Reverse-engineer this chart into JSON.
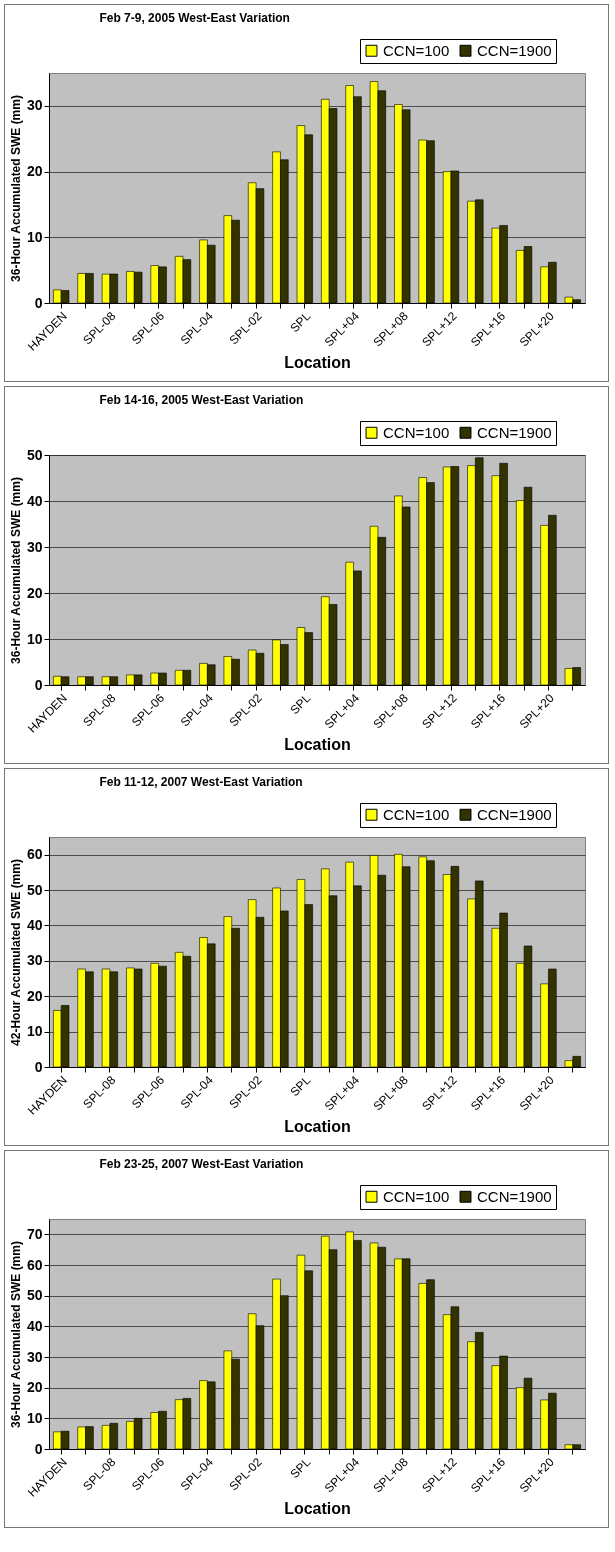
{
  "chart_data": [
    {
      "type": "bar",
      "title": "Feb 7-9, 2005 West-East Variation",
      "xlabel": "Location",
      "ylabel": "36-Hour Accumulated SWE (mm)",
      "categories": [
        "HAYDEN",
        null,
        "SPL-08",
        null,
        "SPL-06",
        null,
        "SPL-04",
        null,
        "SPL-02",
        null,
        "SPL",
        null,
        "SPL+04",
        null,
        "SPL+08",
        null,
        "SPL+12",
        null,
        "SPL+16",
        null,
        "SPL+20",
        null
      ],
      "ylim": [
        0,
        35
      ],
      "yticks": [
        0,
        10,
        20,
        30
      ],
      "grid": "y",
      "legend": "top right",
      "series": [
        {
          "name": "CCN=100",
          "color": "#ffff00",
          "values": [
            2.0,
            4.5,
            4.4,
            4.8,
            5.7,
            7.1,
            9.6,
            13.3,
            18.3,
            23.0,
            27.0,
            31.0,
            33.1,
            33.7,
            30.2,
            24.8,
            20.0,
            15.5,
            11.4,
            8.0,
            5.5,
            0.9
          ]
        },
        {
          "name": "CCN=1900",
          "color": "#333300",
          "values": [
            1.9,
            4.5,
            4.4,
            4.7,
            5.5,
            6.6,
            8.8,
            12.6,
            17.4,
            21.8,
            25.6,
            29.6,
            31.4,
            32.3,
            29.4,
            24.7,
            20.1,
            15.7,
            11.8,
            8.6,
            6.2,
            0.5
          ]
        }
      ]
    },
    {
      "type": "bar",
      "title": "Feb 14-16, 2005 West-East Variation",
      "xlabel": "Location",
      "ylabel": "36-Hour Accumulated SWE (mm)",
      "categories": [
        "HAYDEN",
        null,
        "SPL-08",
        null,
        "SPL-06",
        null,
        "SPL-04",
        null,
        "SPL-02",
        null,
        "SPL",
        null,
        "SPL+04",
        null,
        "SPL+08",
        null,
        "SPL+12",
        null,
        "SPL+16",
        null,
        "SPL+20",
        null
      ],
      "ylim": [
        0,
        50
      ],
      "yticks": [
        0,
        10,
        20,
        30,
        40,
        50
      ],
      "grid": "y",
      "legend": "top right",
      "series": [
        {
          "name": "CCN=100",
          "color": "#ffff00",
          "values": [
            1.9,
            1.8,
            1.8,
            2.2,
            2.6,
            3.2,
            4.7,
            6.2,
            7.6,
            9.8,
            12.5,
            19.2,
            26.7,
            34.5,
            41.1,
            45.1,
            47.4,
            47.7,
            45.5,
            40.1,
            34.7,
            3.6
          ]
        },
        {
          "name": "CCN=1900",
          "color": "#333300",
          "values": [
            1.8,
            1.8,
            1.8,
            2.2,
            2.6,
            3.2,
            4.4,
            5.6,
            6.9,
            8.8,
            11.4,
            17.5,
            24.8,
            32.1,
            38.7,
            44.0,
            47.5,
            49.4,
            48.2,
            43.0,
            36.9,
            3.8
          ]
        }
      ]
    },
    {
      "type": "bar",
      "title": "Feb 11-12, 2007 West-East Variation",
      "xlabel": "Location",
      "ylabel": "42-Hour Accumulated SWE (mm)",
      "categories": [
        "HAYDEN",
        null,
        "SPL-08",
        null,
        "SPL-06",
        null,
        "SPL-04",
        null,
        "SPL-02",
        null,
        "SPL",
        null,
        "SPL+04",
        null,
        "SPL+08",
        null,
        "SPL+12",
        null,
        "SPL+16",
        null,
        "SPL+20",
        null
      ],
      "ylim": [
        0,
        65
      ],
      "yticks": [
        0,
        10,
        20,
        30,
        40,
        50,
        60
      ],
      "grid": "y",
      "legend": "top right",
      "series": [
        {
          "name": "CCN=100",
          "color": "#ffff00",
          "values": [
            16.0,
            27.7,
            27.7,
            28.0,
            29.3,
            32.4,
            36.6,
            42.5,
            47.3,
            50.6,
            53.0,
            56.0,
            57.9,
            59.8,
            60.1,
            59.4,
            54.4,
            47.5,
            39.2,
            29.3,
            23.5,
            1.8
          ]
        },
        {
          "name": "CCN=1900",
          "color": "#333300",
          "values": [
            17.4,
            26.9,
            26.9,
            27.7,
            28.5,
            31.3,
            34.8,
            39.2,
            42.3,
            44.1,
            45.9,
            48.4,
            51.2,
            54.2,
            56.6,
            58.3,
            56.7,
            52.6,
            43.5,
            34.2,
            27.7,
            3.0
          ]
        }
      ]
    },
    {
      "type": "bar",
      "title": "Feb 23-25, 2007 West-East Variation",
      "xlabel": "Location",
      "ylabel": "36-Hour Accumulated SWE (mm)",
      "categories": [
        "HAYDEN",
        null,
        "SPL-08",
        null,
        "SPL-06",
        null,
        "SPL-04",
        null,
        "SPL-02",
        null,
        "SPL",
        null,
        "SPL+04",
        null,
        "SPL+08",
        null,
        "SPL+12",
        null,
        "SPL+16",
        null,
        "SPL+20",
        null
      ],
      "ylim": [
        0,
        75
      ],
      "yticks": [
        0,
        10,
        20,
        30,
        40,
        50,
        60,
        70
      ],
      "grid": "y",
      "legend": "top right",
      "series": [
        {
          "name": "CCN=100",
          "color": "#ffff00",
          "values": [
            5.6,
            7.2,
            7.7,
            9.0,
            11.9,
            16.1,
            22.3,
            32.0,
            44.1,
            55.4,
            63.2,
            69.4,
            70.8,
            67.2,
            62.0,
            54.0,
            43.8,
            35.0,
            27.2,
            20.0,
            16.0,
            1.4
          ]
        },
        {
          "name": "CCN=1900",
          "color": "#333300",
          "values": [
            5.8,
            7.3,
            8.4,
            10.0,
            12.3,
            16.5,
            21.9,
            29.3,
            40.2,
            50.0,
            58.1,
            65.0,
            68.0,
            65.8,
            62.0,
            55.2,
            46.4,
            38.0,
            30.3,
            23.1,
            18.2,
            1.4
          ]
        }
      ]
    }
  ]
}
